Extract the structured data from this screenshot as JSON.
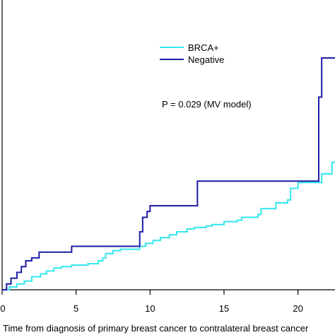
{
  "chart_data": {
    "type": "line",
    "step": true,
    "title": "",
    "xlabel": "Time from diagnosis of primary breast cancer to contralateral breast cancer",
    "ylabel": "",
    "xlim": [
      0,
      22.5
    ],
    "ylim": [
      0,
      1
    ],
    "xticks": [
      0,
      5,
      10,
      15,
      20
    ],
    "xtick_labels": [
      "0",
      "5",
      "10",
      "15",
      "20"
    ],
    "grid": false,
    "legend": "top-right",
    "annotation": "P = 0.029 (MV model)",
    "series": [
      {
        "name": "BRCA+",
        "color": "#33e6ee",
        "points": [
          [
            0,
            0
          ],
          [
            0.5,
            0.01
          ],
          [
            1.0,
            0.02
          ],
          [
            1.5,
            0.03
          ],
          [
            2.0,
            0.045
          ],
          [
            2.6,
            0.055
          ],
          [
            3.0,
            0.065
          ],
          [
            3.5,
            0.075
          ],
          [
            4.0,
            0.08
          ],
          [
            4.7,
            0.085
          ],
          [
            5.8,
            0.09
          ],
          [
            6.5,
            0.1
          ],
          [
            6.8,
            0.11
          ],
          [
            7.0,
            0.125
          ],
          [
            7.5,
            0.135
          ],
          [
            8.0,
            0.14
          ],
          [
            9.3,
            0.15
          ],
          [
            9.7,
            0.16
          ],
          [
            10.2,
            0.17
          ],
          [
            10.7,
            0.18
          ],
          [
            11.3,
            0.19
          ],
          [
            11.8,
            0.2
          ],
          [
            12.5,
            0.21
          ],
          [
            13.0,
            0.215
          ],
          [
            13.8,
            0.22
          ],
          [
            14.2,
            0.225
          ],
          [
            15.0,
            0.235
          ],
          [
            15.9,
            0.24
          ],
          [
            16.2,
            0.25
          ],
          [
            17.3,
            0.26
          ],
          [
            17.5,
            0.28
          ],
          [
            18.5,
            0.3
          ],
          [
            19.3,
            0.31
          ],
          [
            19.5,
            0.35
          ],
          [
            20.0,
            0.37
          ],
          [
            21.6,
            0.4
          ],
          [
            22.3,
            0.44
          ]
        ]
      },
      {
        "name": "Negative",
        "color": "#1c1ca6",
        "points": [
          [
            0,
            0
          ],
          [
            0.3,
            0.02
          ],
          [
            0.6,
            0.04
          ],
          [
            1.0,
            0.06
          ],
          [
            1.3,
            0.08
          ],
          [
            1.6,
            0.1
          ],
          [
            2.0,
            0.11
          ],
          [
            2.5,
            0.13
          ],
          [
            4.7,
            0.15
          ],
          [
            9.3,
            0.2
          ],
          [
            9.5,
            0.25
          ],
          [
            9.8,
            0.27
          ],
          [
            10.0,
            0.29
          ],
          [
            13.2,
            0.375
          ],
          [
            21.4,
            0.665
          ],
          [
            21.6,
            0.8
          ],
          [
            22.3,
            0.8
          ]
        ]
      }
    ]
  }
}
